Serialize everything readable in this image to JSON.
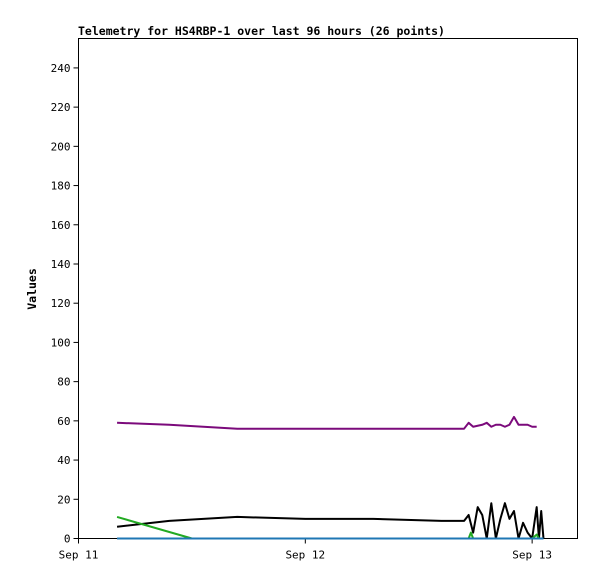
{
  "chart_data": {
    "type": "line",
    "title": "Telemetry for HS4RBP-1 over last 96 hours (26 points)",
    "xlabel": "",
    "ylabel": "Values",
    "x_tick_labels": [
      "Sep 11",
      "Sep 12",
      "Sep 13"
    ],
    "x_tick_positions": [
      0,
      1,
      2
    ],
    "xlim": [
      0,
      2.2
    ],
    "ylim": [
      0,
      255
    ],
    "y_ticks": [
      0,
      20,
      40,
      60,
      80,
      100,
      120,
      140,
      160,
      180,
      200,
      220,
      240
    ],
    "grid": false,
    "series": [
      {
        "color": "#7b0a7b",
        "points": [
          [
            0.17,
            59
          ],
          [
            0.4,
            58
          ],
          [
            0.7,
            56
          ],
          [
            1.0,
            56
          ],
          [
            1.3,
            56
          ],
          [
            1.6,
            56
          ],
          [
            1.7,
            56
          ],
          [
            1.72,
            59
          ],
          [
            1.74,
            57
          ],
          [
            1.78,
            58
          ],
          [
            1.8,
            59
          ],
          [
            1.82,
            57
          ],
          [
            1.84,
            58
          ],
          [
            1.86,
            58
          ],
          [
            1.88,
            57
          ],
          [
            1.9,
            58
          ],
          [
            1.92,
            62
          ],
          [
            1.94,
            58
          ],
          [
            1.96,
            58
          ],
          [
            1.98,
            58
          ],
          [
            2.0,
            57
          ],
          [
            2.02,
            57
          ]
        ]
      },
      {
        "color": "#000000",
        "points": [
          [
            0.17,
            6
          ],
          [
            0.4,
            9
          ],
          [
            0.7,
            11
          ],
          [
            1.0,
            10
          ],
          [
            1.3,
            10
          ],
          [
            1.6,
            9
          ],
          [
            1.7,
            9
          ],
          [
            1.72,
            12
          ],
          [
            1.74,
            3
          ],
          [
            1.76,
            16
          ],
          [
            1.78,
            12
          ],
          [
            1.8,
            0
          ],
          [
            1.82,
            18
          ],
          [
            1.84,
            0
          ],
          [
            1.86,
            10
          ],
          [
            1.88,
            18
          ],
          [
            1.9,
            10
          ],
          [
            1.92,
            14
          ],
          [
            1.94,
            0
          ],
          [
            1.96,
            8
          ],
          [
            1.98,
            3
          ],
          [
            2.0,
            0
          ],
          [
            2.02,
            16
          ],
          [
            2.03,
            0
          ],
          [
            2.04,
            14
          ],
          [
            2.05,
            0
          ]
        ]
      },
      {
        "color": "#22aa22",
        "points": [
          [
            0.17,
            11
          ],
          [
            0.5,
            0
          ],
          [
            0.7,
            0
          ],
          [
            1.0,
            0
          ],
          [
            1.3,
            0
          ],
          [
            1.6,
            0
          ],
          [
            1.7,
            0
          ],
          [
            1.72,
            0
          ],
          [
            1.73,
            3
          ],
          [
            1.74,
            0
          ],
          [
            1.9,
            0
          ],
          [
            2.0,
            0
          ],
          [
            2.02,
            2
          ],
          [
            2.03,
            0
          ],
          [
            2.05,
            0
          ]
        ]
      },
      {
        "color": "#1f77b4",
        "points": [
          [
            0.17,
            0
          ],
          [
            2.05,
            0
          ]
        ]
      }
    ]
  }
}
